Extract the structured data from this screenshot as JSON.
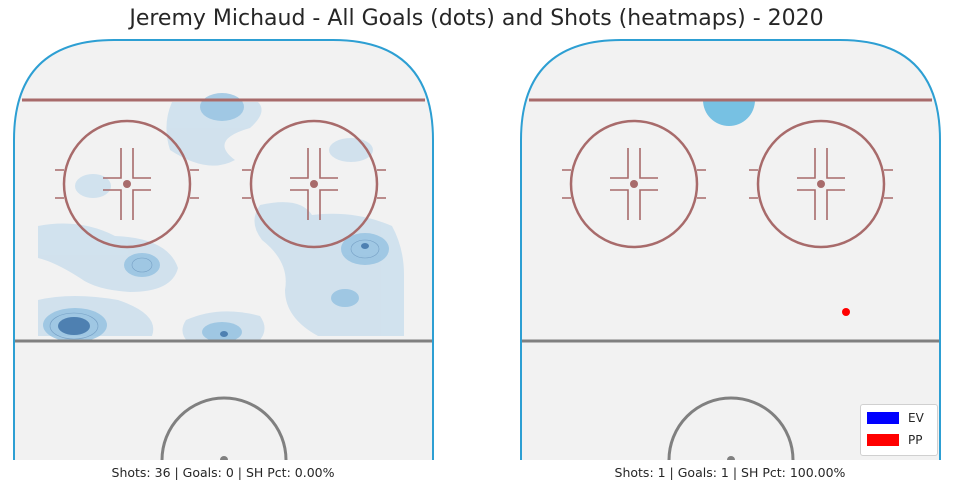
{
  "title": "Jeremy Michaud - All Goals (dots) and Shots (heatmaps) - 2020",
  "colors": {
    "ice": "#f2f2f2",
    "boards": "#2d9fd3",
    "red_line": "#a86b6b",
    "center_line": "#808080",
    "heat_light": "#c6dcec",
    "heat_mid": "#8fbfe0",
    "heat_dark": "#3f73a8",
    "goal_blob": "#77c1e3",
    "ev": "#0000ff",
    "pp": "#ff0000"
  },
  "chart_data": [
    {
      "type": "heatmap",
      "panel": "all-situations",
      "caption": "Shots: 36 | Goals: 0 | SH Pct: 0.00%",
      "shots": 36,
      "goals": 0,
      "sh_pct": "0.00%",
      "goal_points": []
    },
    {
      "type": "heatmap",
      "panel": "goals",
      "caption": "Shots: 1 | Goals: 1 | SH Pct: 100.00%",
      "shots": 1,
      "goals": 1,
      "sh_pct": "100.00%",
      "goal_points": [
        {
          "strength": "PP"
        }
      ]
    }
  ],
  "legend": {
    "placement": "bottom-right",
    "entries": [
      {
        "label": "EV",
        "color": "#0000ff"
      },
      {
        "label": "PP",
        "color": "#ff0000"
      }
    ]
  }
}
